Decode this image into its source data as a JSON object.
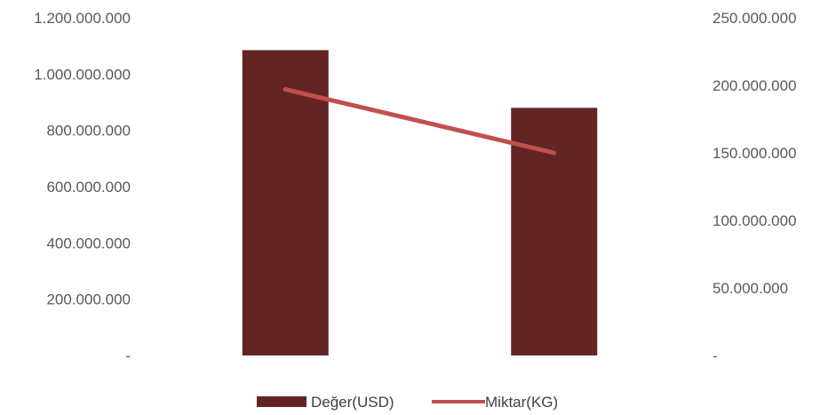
{
  "chart_data": {
    "type": "bar+line",
    "categories": [
      "",
      ""
    ],
    "series": [
      {
        "name": "Değer(USD)",
        "type": "bar",
        "axis": "left",
        "color": "#632523",
        "values": [
          1085000000,
          880000000
        ]
      },
      {
        "name": "Miktar(KG)",
        "type": "line",
        "axis": "right",
        "color": "#C0504D",
        "values": [
          197000000,
          150000000
        ]
      }
    ],
    "y_left": {
      "ylim": [
        0,
        1200000000
      ],
      "ticks": [
        0,
        200000000,
        400000000,
        600000000,
        800000000,
        1000000000,
        1200000000
      ],
      "tick_labels": [
        "-",
        "200.000.000",
        "400.000.000",
        "600.000.000",
        "800.000.000",
        "1.000.000.000",
        "1.200.000.000"
      ]
    },
    "y_right": {
      "ylim": [
        0,
        250000000
      ],
      "ticks": [
        0,
        50000000,
        100000000,
        150000000,
        200000000,
        250000000
      ],
      "tick_labels": [
        "-",
        "50.000.000",
        "100.000.000",
        "150.000.000",
        "200.000.000",
        "250.000.000"
      ]
    },
    "grid": false,
    "legend_position": "bottom"
  }
}
